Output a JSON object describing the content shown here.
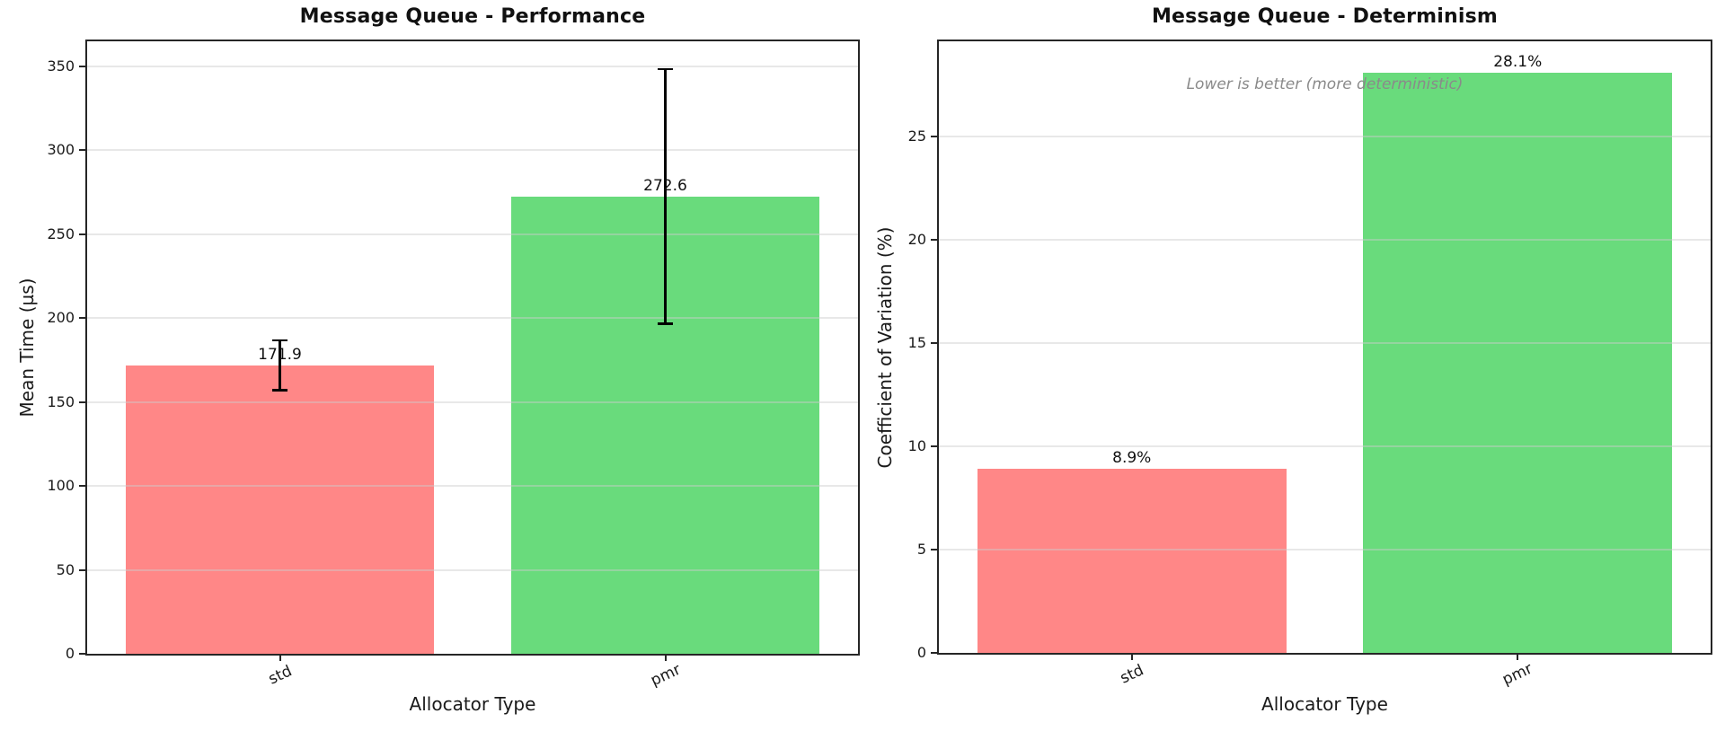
{
  "figure": {
    "background": "#ffffff",
    "spine_color": "#262626",
    "grid_color": "#cbcbcb"
  },
  "chart_data": [
    {
      "type": "bar",
      "title": "Message Queue - Performance",
      "xlabel": "Allocator Type",
      "ylabel": "Mean Time (µs)",
      "categories": [
        "std",
        "pmr"
      ],
      "values": [
        171.9,
        272.6
      ],
      "errors": [
        15,
        76
      ],
      "value_labels": [
        "171.9",
        "272.6"
      ],
      "bar_colors": [
        "#ff8787",
        "#69db7c"
      ],
      "bar_width": 0.8,
      "ylim": [
        0,
        365
      ],
      "yticks": [
        0,
        50,
        100,
        150,
        200,
        250,
        300,
        350
      ],
      "grid": true,
      "legend": "none"
    },
    {
      "type": "bar",
      "title": "Message Queue - Determinism",
      "xlabel": "Allocator Type",
      "ylabel": "Coefficient of Variation (%)",
      "categories": [
        "std",
        "pmr"
      ],
      "values": [
        8.9,
        28.1
      ],
      "value_labels": [
        "8.9%",
        "28.1%"
      ],
      "bar_colors": [
        "#ff8787",
        "#69db7c"
      ],
      "bar_width": 0.8,
      "ylim": [
        0,
        29.6
      ],
      "yticks": [
        0,
        5,
        10,
        15,
        20,
        25
      ],
      "grid": true,
      "legend": "none",
      "annotation": "Lower is better (more deterministic)"
    }
  ]
}
